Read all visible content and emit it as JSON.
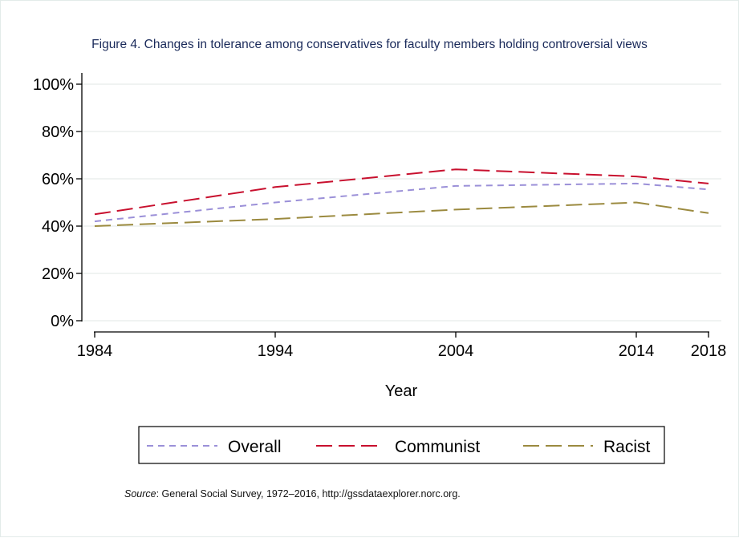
{
  "chart_data": {
    "type": "line",
    "title": "Figure 4. Changes in tolerance among conservatives for faculty members holding controversial views",
    "xlabel": "Year",
    "ylabel": "",
    "x": [
      1984,
      1994,
      2004,
      2014,
      2018
    ],
    "x_ticks": [
      "1984",
      "1994",
      "2004",
      "2014",
      "2018"
    ],
    "xlim": [
      1984,
      2018
    ],
    "ylim": [
      0,
      100
    ],
    "y_ticks": [
      0,
      20,
      40,
      60,
      80,
      100
    ],
    "y_tick_labels": [
      "0%",
      "20%",
      "40%",
      "60%",
      "80%",
      "100%"
    ],
    "grid": true,
    "legend_position": "bottom",
    "series": [
      {
        "name": "Overall",
        "values": [
          42,
          50,
          57,
          58,
          55.5
        ],
        "color": "#9b90d8",
        "dash": "short"
      },
      {
        "name": "Communist",
        "values": [
          45,
          56.5,
          64,
          61,
          58
        ],
        "color": "#c8102e",
        "dash": "long"
      },
      {
        "name": "Racist",
        "values": [
          40,
          43,
          47,
          50,
          45.5
        ],
        "color": "#9b8a3f",
        "dash": "long"
      }
    ]
  },
  "source": {
    "label": "Source",
    "text": ": General Social Survey, 1972–2016, http://gssdataexplorer.norc.org."
  }
}
